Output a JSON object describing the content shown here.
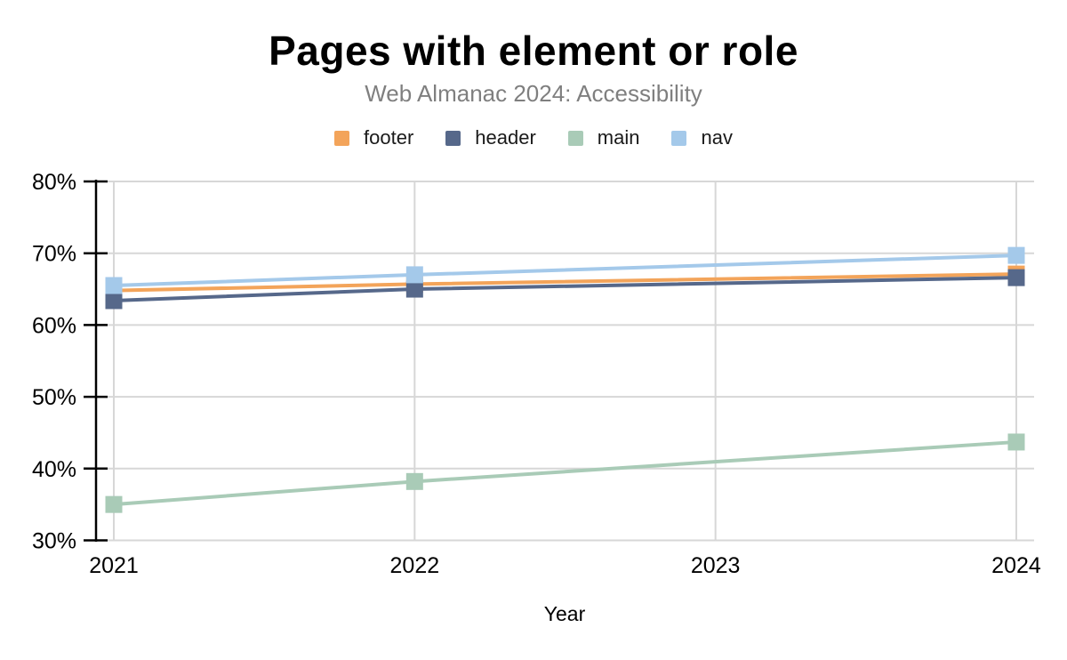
{
  "title": "Pages with element or role",
  "subtitle": "Web Almanac 2024: Accessibility",
  "chart_data": {
    "type": "line",
    "xlabel": "Year",
    "ylabel": "",
    "x": [
      2021,
      2022,
      2024
    ],
    "x_tick_labels": [
      "2021",
      "2022",
      "2023",
      "2024"
    ],
    "x_tick_years": [
      2021,
      2022,
      2023,
      2024
    ],
    "y_tick_labels": [
      "30%",
      "40%",
      "50%",
      "60%",
      "70%",
      "80%"
    ],
    "y_tick_values": [
      30,
      40,
      50,
      60,
      70,
      80
    ],
    "ylim": [
      30,
      80
    ],
    "xlim": [
      2021,
      2024
    ],
    "grid": true,
    "legend_position": "top",
    "marker_shape": "square",
    "series": [
      {
        "name": "footer",
        "color": "#F3A45A",
        "values": [
          64.8,
          65.7,
          67.1
        ]
      },
      {
        "name": "header",
        "color": "#56688A",
        "values": [
          63.4,
          65.0,
          66.6
        ]
      },
      {
        "name": "main",
        "color": "#A9CBB7",
        "values": [
          35.0,
          38.2,
          43.7
        ]
      },
      {
        "name": "nav",
        "color": "#A4C9EA",
        "values": [
          65.5,
          67.0,
          69.7
        ]
      }
    ]
  },
  "colors": {
    "background": "#FFFFFF",
    "title": "#000000",
    "subtitle": "#7F7F7F",
    "axis": "#000000",
    "gridline": "#D7D7D7",
    "tick_label": "#000000"
  }
}
